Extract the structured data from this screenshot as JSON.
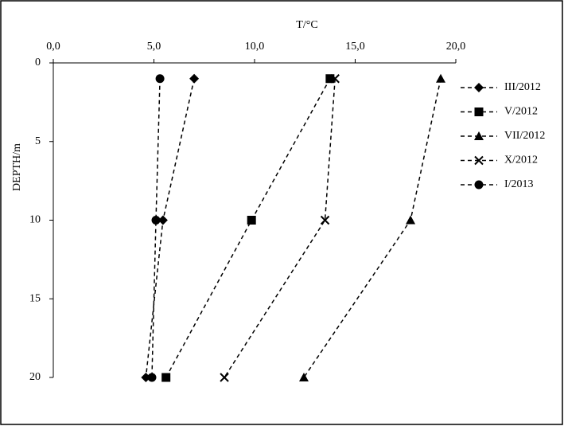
{
  "chart_data": {
    "type": "line",
    "x_label": "T/°C",
    "y_label": "DEPTH/m",
    "x_axis_position": "top",
    "y_reversed": true,
    "xlim": [
      0,
      20
    ],
    "xticks": [
      {
        "value": 0,
        "label": "0,0"
      },
      {
        "value": 5,
        "label": "5,0"
      },
      {
        "value": 10,
        "label": "10,0"
      },
      {
        "value": 15,
        "label": "15,0"
      },
      {
        "value": 20,
        "label": "20,0"
      }
    ],
    "ylim": [
      0,
      20
    ],
    "yticks": [
      0,
      5,
      10,
      15,
      20
    ],
    "grid": false,
    "legend": "right",
    "line_style": "dashed",
    "series": [
      {
        "name": "III/2012",
        "color": "#000000",
        "marker": "diamond",
        "x": [
          7.0,
          5.45,
          4.6
        ],
        "values": [
          1,
          10,
          20
        ]
      },
      {
        "name": "V/2012",
        "color": "#000000",
        "marker": "square",
        "x": [
          13.75,
          9.85,
          5.6
        ],
        "values": [
          1,
          10,
          20
        ]
      },
      {
        "name": "VII/2012",
        "color": "#000000",
        "marker": "triangle",
        "x": [
          19.25,
          17.75,
          12.45
        ],
        "values": [
          1,
          10,
          20
        ]
      },
      {
        "name": "X/2012",
        "color": "#000000",
        "marker": "cross",
        "x": [
          14.0,
          13.5,
          8.5
        ],
        "values": [
          1,
          10,
          20
        ]
      },
      {
        "name": "I/2013",
        "color": "#000000",
        "marker": "circle",
        "x": [
          5.3,
          5.1,
          4.9
        ],
        "values": [
          1,
          10,
          20
        ]
      }
    ]
  }
}
